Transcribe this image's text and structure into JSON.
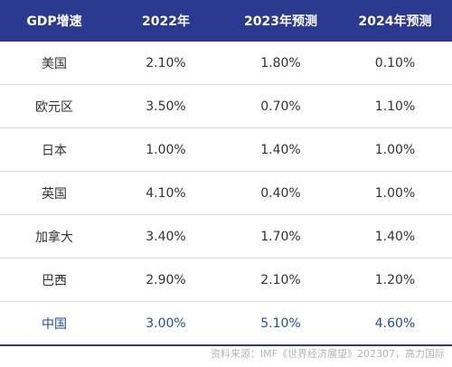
{
  "table": {
    "headers": [
      "GDP增速",
      "2022年",
      "2023年预测",
      "2024年预测"
    ],
    "rows": [
      [
        "美国",
        "2.10%",
        "1.80%",
        "0.10%"
      ],
      [
        "欧元区",
        "3.50%",
        "0.70%",
        "1.10%"
      ],
      [
        "日本",
        "1.00%",
        "1.40%",
        "1.00%"
      ],
      [
        "英国",
        "4.10%",
        "0.40%",
        "1.00%"
      ],
      [
        "加拿大",
        "3.40%",
        "1.70%",
        "1.40%"
      ],
      [
        "巴西",
        "2.90%",
        "2.10%",
        "1.20%"
      ],
      [
        "中国",
        "3.00%",
        "5.10%",
        "4.60%"
      ]
    ]
  },
  "source": "资料来源：IMF《世界经济展望》202307，高力国际",
  "colors": {
    "header_bg": "#2b3990",
    "highlight_text": "#1f4ea6"
  }
}
